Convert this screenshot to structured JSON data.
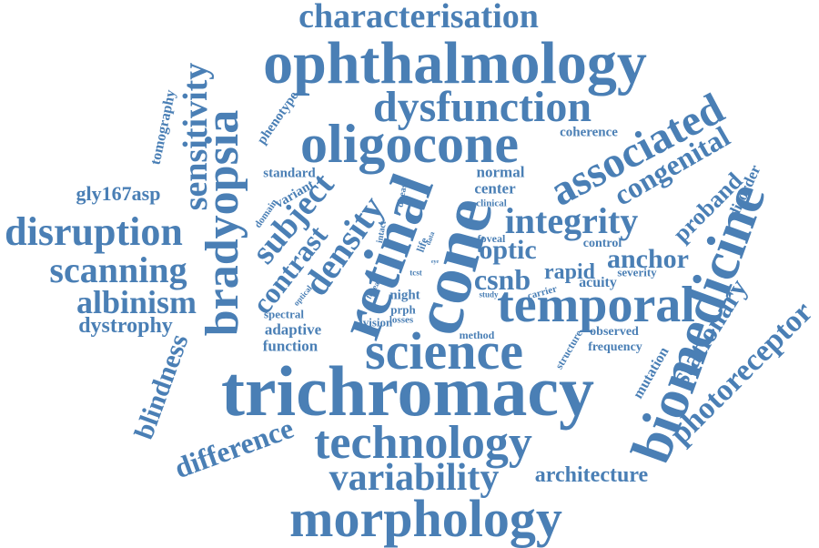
{
  "color": "#4a7fb5",
  "words": [
    "characterisation",
    "ophthalmology",
    "dysfunction",
    "oligocone",
    "associated",
    "sensitivity",
    "bradyopsia",
    "retinal",
    "cone",
    "science",
    "trichromacy",
    "biomedicine",
    "temporal",
    "technology",
    "morphology",
    "variability",
    "architecture",
    "disruption",
    "scanning",
    "albinism",
    "dystrophy",
    "blindness",
    "difference",
    "photoreceptor",
    "stationary",
    "congenital",
    "integrity",
    "subject",
    "density",
    "contrast",
    "optic",
    "anchor",
    "csnb",
    "rapid",
    "proband",
    "disorder",
    "coherence",
    "gly167asp",
    "tomography",
    "phenotype",
    "standard",
    "variant",
    "domain",
    "normal",
    "center",
    "clinical",
    "disease",
    "intact",
    "life",
    "data",
    "foveal",
    "control",
    "severity",
    "acuity",
    "carrier",
    "study",
    "night",
    "prph",
    "losses",
    "vision",
    "adaptive",
    "function",
    "spectral",
    "optical",
    "fovea",
    "tcst",
    "method",
    "observed",
    "frequency",
    "structure",
    "mutation",
    "eye"
  ]
}
